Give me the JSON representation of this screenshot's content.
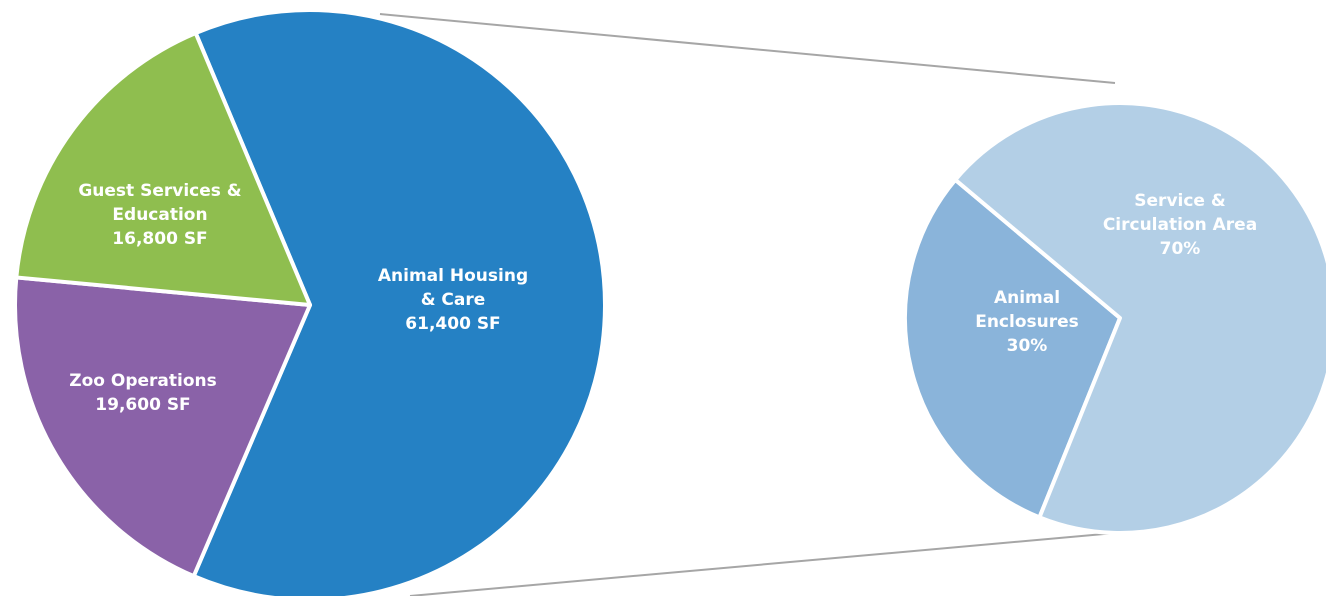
{
  "chart_data": [
    {
      "type": "pie",
      "categories": [
        "Animal Housing & Care",
        "Zoo Operations",
        "Guest Services & Education"
      ],
      "values": [
        61400,
        19600,
        16800
      ],
      "value_labels": [
        "61,400 SF",
        "19,600 SF",
        "16,800 SF"
      ],
      "colors": [
        "#2581c4",
        "#8a62a8",
        "#8fbe4f"
      ]
    },
    {
      "type": "pie",
      "categories": [
        "Animal Enclosures",
        "Service & Circulation Area"
      ],
      "values": [
        30,
        70
      ],
      "value_labels": [
        "30%",
        "70%"
      ],
      "colors": [
        "#8ab4da",
        "#b3cfe6"
      ]
    }
  ]
}
